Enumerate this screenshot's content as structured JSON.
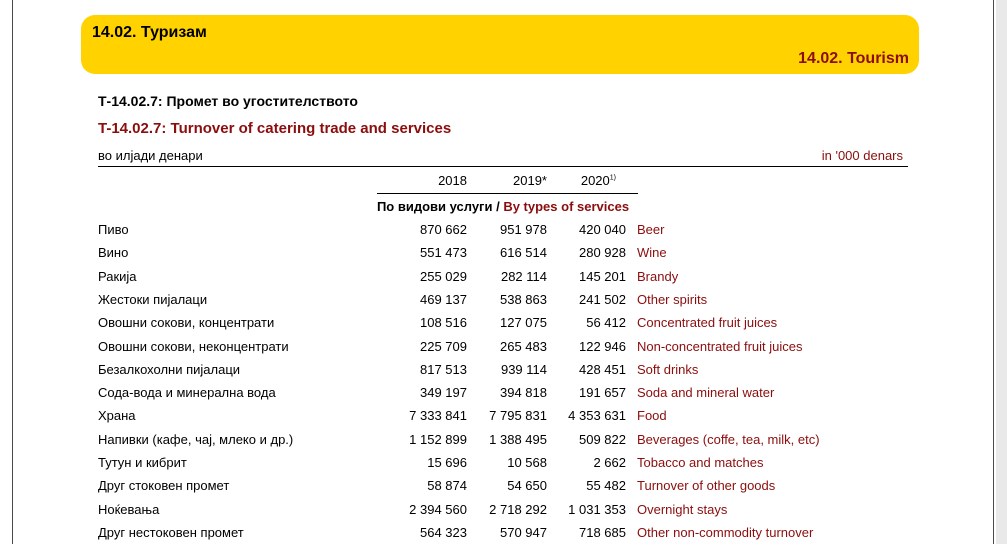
{
  "banner": {
    "title_mk": "14.02. Туризам",
    "title_en": "14.02. Tourism"
  },
  "table": {
    "title_mk": "Т-14.02.7: Промет во угостителството",
    "title_en": "T-14.02.7: Turnover of catering trade and services",
    "unit_mk": "во илјади денари",
    "unit_en": "in '000 denars",
    "years": [
      "2018",
      "2019*",
      "2020"
    ],
    "year3_note": "1)",
    "section_mk": "По видови услуги /",
    "section_en": "By types of services",
    "rows": [
      {
        "mk": "Пиво",
        "v2018": "870 662",
        "v2019": "951 978",
        "v2020": "420 040",
        "en": "Beer"
      },
      {
        "mk": "Вино",
        "v2018": "551 473",
        "v2019": "616 514",
        "v2020": "280 928",
        "en": "Wine"
      },
      {
        "mk": "Ракија",
        "v2018": "255 029",
        "v2019": "282 114",
        "v2020": "145 201",
        "en": "Brandy"
      },
      {
        "mk": "Жестоки пијалаци",
        "v2018": "469 137",
        "v2019": "538 863",
        "v2020": "241 502",
        "en": "Other spirits"
      },
      {
        "mk": "Овошни сокови, концентрати",
        "v2018": "108 516",
        "v2019": "127 075",
        "v2020": "56 412",
        "en": "Concentrated fruit juices"
      },
      {
        "mk": "Овошни сокови, неконцентрати",
        "v2018": "225 709",
        "v2019": "265 483",
        "v2020": "122 946",
        "en": "Non-concentrated fruit juices"
      },
      {
        "mk": "Безалкохолни пијалаци",
        "v2018": "817 513",
        "v2019": "939 114",
        "v2020": "428 451",
        "en": "Soft drinks"
      },
      {
        "mk": "Сода-вода и минерална вода",
        "v2018": "349 197",
        "v2019": "394 818",
        "v2020": "191 657",
        "en": "Soda and mineral water"
      },
      {
        "mk": "Храна",
        "v2018": "7 333 841",
        "v2019": "7 795 831",
        "v2020": "4 353 631",
        "en": "Food"
      },
      {
        "mk": "Напивки (кафе, чај, млеко и др.)",
        "v2018": "1 152 899",
        "v2019": "1 388 495",
        "v2020": "509 822",
        "en": "Beverages (coffe, tea, milk, etc)"
      },
      {
        "mk": "Тутун и кибрит",
        "v2018": "15 696",
        "v2019": "10 568",
        "v2020": "2 662",
        "en": "Tobacco and matches"
      },
      {
        "mk": "Друг стоковен промет",
        "v2018": "58 874",
        "v2019": "54 650",
        "v2020": "55 482",
        "en": "Turnover of other goods"
      },
      {
        "mk": "Ноќевања",
        "v2018": "2 394 560",
        "v2019": "2 718 292",
        "v2020": "1 031 353",
        "en": "Overnight stays"
      },
      {
        "mk": "Друг нестоковен промет",
        "v2018": "564 323",
        "v2019": "570 947",
        "v2020": "718 685",
        "en": "Other non-commodity turnover"
      }
    ]
  }
}
